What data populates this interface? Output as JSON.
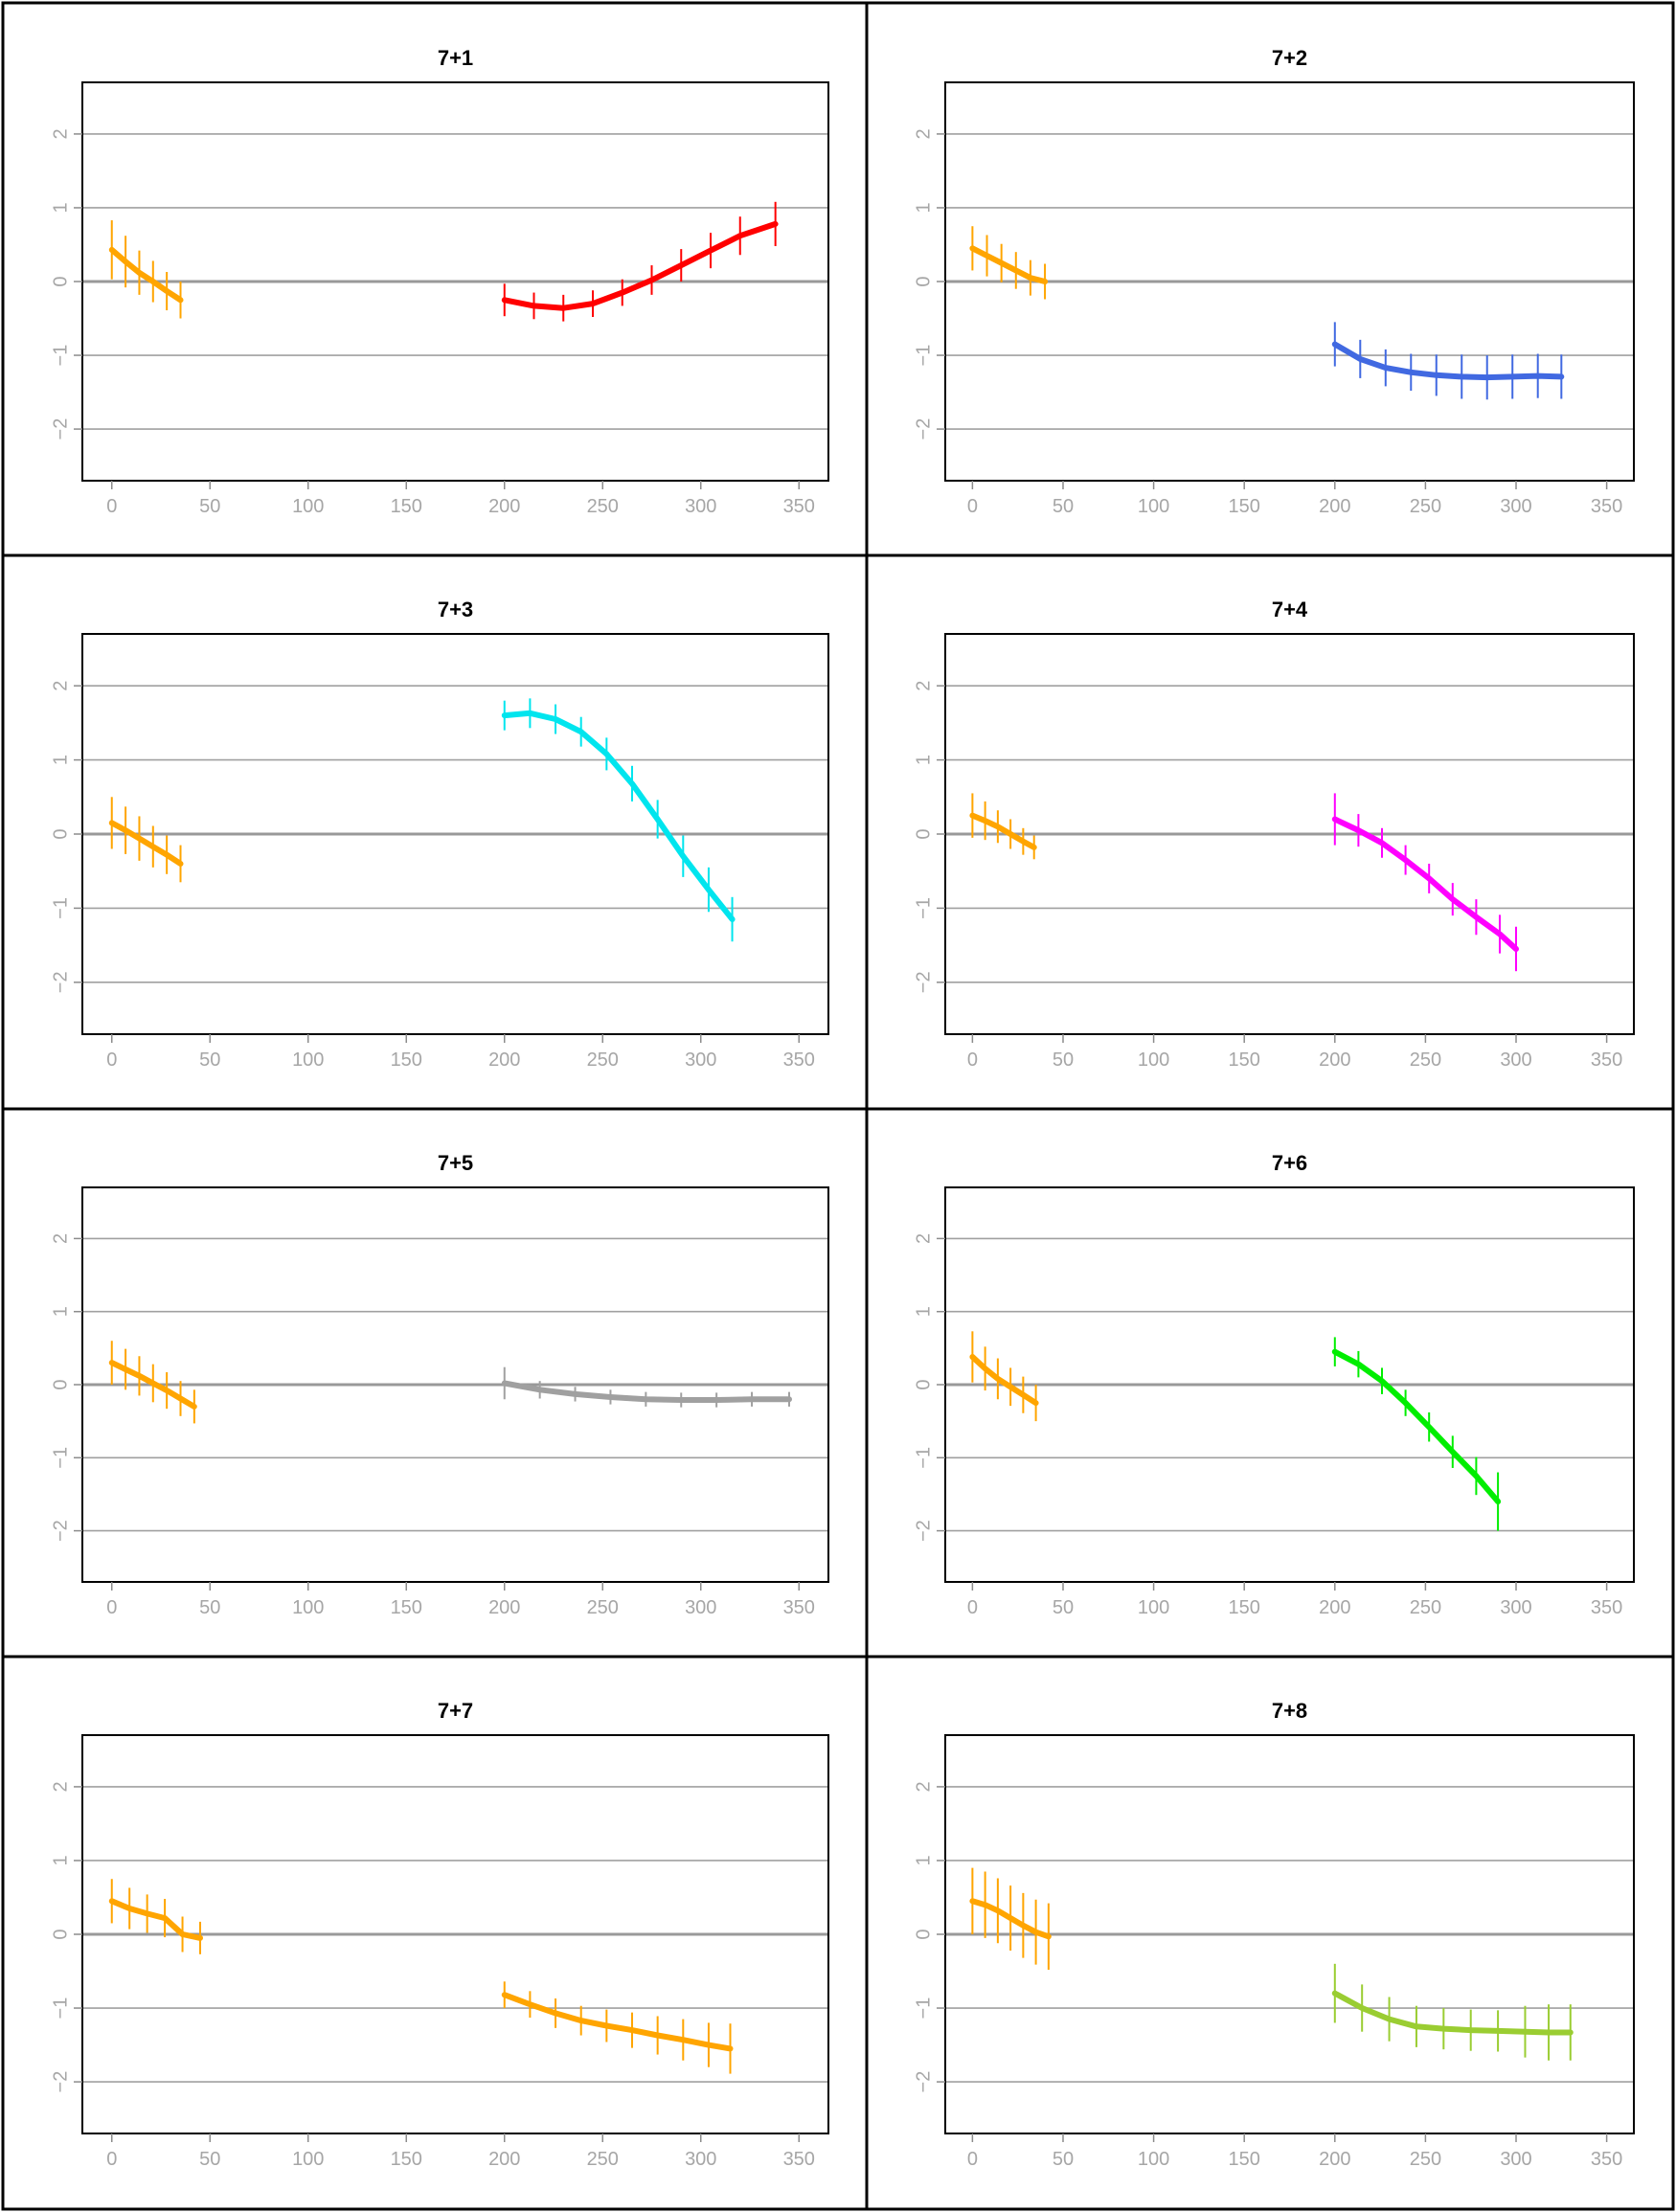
{
  "figure": {
    "colors": {
      "reference": "#ffa500",
      "gridline": "#a0a0a0",
      "zero_line": "#999999",
      "tick_text": "#a6a6a6",
      "frame": "#000000"
    }
  },
  "chart_data": [
    {
      "type": "line",
      "title": "7+1",
      "xlabel": "",
      "ylabel": "",
      "xlim": [
        -15,
        365
      ],
      "ylim": [
        -2.7,
        2.7
      ],
      "x_ticks": [
        0,
        50,
        100,
        150,
        200,
        250,
        300,
        350
      ],
      "x_tick_labels": [
        "0",
        "50",
        "100",
        "150",
        "200",
        "250",
        "300",
        "350"
      ],
      "y_ticks": [
        -2,
        -1,
        0,
        1,
        2
      ],
      "y_tick_labels": [
        "−2",
        "−1",
        "0",
        "1",
        "2"
      ],
      "grid": "horizontal",
      "series": [
        {
          "color": "#ffa500",
          "x": [
            0,
            7,
            14,
            21,
            28,
            35
          ],
          "y": [
            0.43,
            0.27,
            0.12,
            0.0,
            -0.13,
            -0.25
          ],
          "err": [
            0.4,
            0.35,
            0.3,
            0.28,
            0.26,
            0.25
          ]
        },
        {
          "color": "#ff0000",
          "x": [
            200,
            215,
            230,
            245,
            260,
            275,
            290,
            305,
            320,
            338
          ],
          "y": [
            -0.25,
            -0.33,
            -0.36,
            -0.3,
            -0.15,
            0.02,
            0.22,
            0.42,
            0.62,
            0.78
          ],
          "err": [
            0.22,
            0.18,
            0.18,
            0.18,
            0.18,
            0.2,
            0.22,
            0.24,
            0.26,
            0.3
          ]
        }
      ]
    },
    {
      "type": "line",
      "title": "7+2",
      "xlabel": "",
      "ylabel": "",
      "xlim": [
        -15,
        365
      ],
      "ylim": [
        -2.7,
        2.7
      ],
      "x_ticks": [
        0,
        50,
        100,
        150,
        200,
        250,
        300,
        350
      ],
      "x_tick_labels": [
        "0",
        "50",
        "100",
        "150",
        "200",
        "250",
        "300",
        "350"
      ],
      "y_ticks": [
        -2,
        -1,
        0,
        1,
        2
      ],
      "y_tick_labels": [
        "−2",
        "−1",
        "0",
        "1",
        "2"
      ],
      "grid": "horizontal",
      "series": [
        {
          "color": "#ffa500",
          "x": [
            0,
            8,
            16,
            24,
            32,
            40
          ],
          "y": [
            0.45,
            0.35,
            0.25,
            0.15,
            0.05,
            0.0
          ],
          "err": [
            0.3,
            0.28,
            0.26,
            0.25,
            0.24,
            0.24
          ]
        },
        {
          "color": "#4169e1",
          "x": [
            200,
            214,
            228,
            242,
            256,
            270,
            284,
            298,
            312,
            325
          ],
          "y": [
            -0.85,
            -1.05,
            -1.17,
            -1.23,
            -1.27,
            -1.29,
            -1.3,
            -1.29,
            -1.28,
            -1.29
          ],
          "err": [
            0.3,
            0.26,
            0.25,
            0.25,
            0.28,
            0.3,
            0.3,
            0.3,
            0.3,
            0.3
          ]
        }
      ]
    },
    {
      "type": "line",
      "title": "7+3",
      "xlabel": "",
      "ylabel": "",
      "xlim": [
        -15,
        365
      ],
      "ylim": [
        -2.7,
        2.7
      ],
      "x_ticks": [
        0,
        50,
        100,
        150,
        200,
        250,
        300,
        350
      ],
      "x_tick_labels": [
        "0",
        "50",
        "100",
        "150",
        "200",
        "250",
        "300",
        "350"
      ],
      "y_ticks": [
        -2,
        -1,
        0,
        1,
        2
      ],
      "y_tick_labels": [
        "−2",
        "−1",
        "0",
        "1",
        "2"
      ],
      "grid": "horizontal",
      "series": [
        {
          "color": "#ffa500",
          "x": [
            0,
            7,
            14,
            21,
            28,
            35
          ],
          "y": [
            0.15,
            0.05,
            -0.06,
            -0.17,
            -0.28,
            -0.4
          ],
          "err": [
            0.35,
            0.32,
            0.3,
            0.28,
            0.26,
            0.25
          ]
        },
        {
          "color": "#00e5ee",
          "x": [
            200,
            213,
            226,
            239,
            252,
            265,
            278,
            291,
            304,
            316
          ],
          "y": [
            1.6,
            1.63,
            1.55,
            1.38,
            1.08,
            0.68,
            0.2,
            -0.3,
            -0.75,
            -1.15
          ],
          "err": [
            0.2,
            0.2,
            0.2,
            0.2,
            0.22,
            0.24,
            0.26,
            0.28,
            0.3,
            0.3
          ]
        }
      ]
    },
    {
      "type": "line",
      "title": "7+4",
      "xlabel": "",
      "ylabel": "",
      "xlim": [
        -15,
        365
      ],
      "ylim": [
        -2.7,
        2.7
      ],
      "x_ticks": [
        0,
        50,
        100,
        150,
        200,
        250,
        300,
        350
      ],
      "x_tick_labels": [
        "0",
        "50",
        "100",
        "150",
        "200",
        "250",
        "300",
        "350"
      ],
      "y_ticks": [
        -2,
        -1,
        0,
        1,
        2
      ],
      "y_tick_labels": [
        "−2",
        "−1",
        "0",
        "1",
        "2"
      ],
      "grid": "horizontal",
      "series": [
        {
          "color": "#ffa500",
          "x": [
            0,
            7,
            14,
            21,
            28,
            34
          ],
          "y": [
            0.25,
            0.18,
            0.1,
            0.0,
            -0.1,
            -0.18
          ],
          "err": [
            0.3,
            0.26,
            0.22,
            0.2,
            0.18,
            0.16
          ]
        },
        {
          "color": "#ff00ff",
          "x": [
            200,
            213,
            226,
            239,
            252,
            265,
            278,
            291,
            300
          ],
          "y": [
            0.2,
            0.05,
            -0.12,
            -0.35,
            -0.6,
            -0.88,
            -1.12,
            -1.35,
            -1.55
          ],
          "err": [
            0.35,
            0.22,
            0.2,
            0.2,
            0.2,
            0.22,
            0.24,
            0.26,
            0.3
          ]
        }
      ]
    },
    {
      "type": "line",
      "title": "7+5",
      "xlabel": "",
      "ylabel": "",
      "xlim": [
        -15,
        365
      ],
      "ylim": [
        -2.7,
        2.7
      ],
      "x_ticks": [
        0,
        50,
        100,
        150,
        200,
        250,
        300,
        350
      ],
      "x_tick_labels": [
        "0",
        "50",
        "100",
        "150",
        "200",
        "250",
        "300",
        "350"
      ],
      "y_ticks": [
        -2,
        -1,
        0,
        1,
        2
      ],
      "y_tick_labels": [
        "−2",
        "−1",
        "0",
        "1",
        "2"
      ],
      "grid": "horizontal",
      "series": [
        {
          "color": "#ffa500",
          "x": [
            0,
            7,
            14,
            21,
            28,
            35,
            42
          ],
          "y": [
            0.3,
            0.21,
            0.12,
            0.02,
            -0.08,
            -0.19,
            -0.3
          ],
          "err": [
            0.3,
            0.28,
            0.27,
            0.26,
            0.25,
            0.24,
            0.23
          ]
        },
        {
          "color": "#a0a0a0",
          "x": [
            200,
            218,
            236,
            254,
            272,
            290,
            308,
            326,
            345
          ],
          "y": [
            0.02,
            -0.07,
            -0.13,
            -0.17,
            -0.2,
            -0.21,
            -0.21,
            -0.2,
            -0.2
          ],
          "err": [
            0.22,
            0.12,
            0.1,
            0.1,
            0.1,
            0.1,
            0.1,
            0.1,
            0.1
          ]
        }
      ]
    },
    {
      "type": "line",
      "title": "7+6",
      "xlabel": "",
      "ylabel": "",
      "xlim": [
        -15,
        365
      ],
      "ylim": [
        -2.7,
        2.7
      ],
      "x_ticks": [
        0,
        50,
        100,
        150,
        200,
        250,
        300,
        350
      ],
      "x_tick_labels": [
        "0",
        "50",
        "100",
        "150",
        "200",
        "250",
        "300",
        "350"
      ],
      "y_ticks": [
        -2,
        -1,
        0,
        1,
        2
      ],
      "y_tick_labels": [
        "−2",
        "−1",
        "0",
        "1",
        "2"
      ],
      "grid": "horizontal",
      "series": [
        {
          "color": "#ffa500",
          "x": [
            0,
            7,
            14,
            21,
            28,
            35
          ],
          "y": [
            0.38,
            0.22,
            0.08,
            -0.03,
            -0.14,
            -0.25
          ],
          "err": [
            0.35,
            0.3,
            0.28,
            0.26,
            0.25,
            0.25
          ]
        },
        {
          "color": "#00ee00",
          "x": [
            200,
            213,
            226,
            239,
            252,
            265,
            278,
            290
          ],
          "y": [
            0.45,
            0.28,
            0.05,
            -0.25,
            -0.58,
            -0.92,
            -1.25,
            -1.6
          ],
          "err": [
            0.2,
            0.18,
            0.18,
            0.18,
            0.2,
            0.22,
            0.26,
            0.4
          ]
        }
      ]
    },
    {
      "type": "line",
      "title": "7+7",
      "xlabel": "",
      "ylabel": "",
      "xlim": [
        -15,
        365
      ],
      "ylim": [
        -2.7,
        2.7
      ],
      "x_ticks": [
        0,
        50,
        100,
        150,
        200,
        250,
        300,
        350
      ],
      "x_tick_labels": [
        "0",
        "50",
        "100",
        "150",
        "200",
        "250",
        "300",
        "350"
      ],
      "y_ticks": [
        -2,
        -1,
        0,
        1,
        2
      ],
      "y_tick_labels": [
        "−2",
        "−1",
        "0",
        "1",
        "2"
      ],
      "grid": "horizontal",
      "series": [
        {
          "color": "#ffa500",
          "x": [
            0,
            9,
            18,
            27,
            36,
            45
          ],
          "y": [
            0.45,
            0.35,
            0.28,
            0.22,
            0.0,
            -0.05
          ],
          "err": [
            0.3,
            0.28,
            0.26,
            0.26,
            0.24,
            0.22
          ]
        },
        {
          "color": "#ffa500",
          "x": [
            200,
            213,
            226,
            239,
            252,
            265,
            278,
            291,
            304,
            315
          ],
          "y": [
            -0.82,
            -0.95,
            -1.07,
            -1.17,
            -1.24,
            -1.3,
            -1.37,
            -1.43,
            -1.5,
            -1.55
          ],
          "err": [
            0.18,
            0.18,
            0.2,
            0.2,
            0.22,
            0.24,
            0.26,
            0.28,
            0.3,
            0.34
          ]
        }
      ]
    },
    {
      "type": "line",
      "title": "7+8",
      "xlabel": "",
      "ylabel": "",
      "xlim": [
        -15,
        365
      ],
      "ylim": [
        -2.7,
        2.7
      ],
      "x_ticks": [
        0,
        50,
        100,
        150,
        200,
        250,
        300,
        350
      ],
      "x_tick_labels": [
        "0",
        "50",
        "100",
        "150",
        "200",
        "250",
        "300",
        "350"
      ],
      "y_ticks": [
        -2,
        -1,
        0,
        1,
        2
      ],
      "y_tick_labels": [
        "−2",
        "−1",
        "0",
        "1",
        "2"
      ],
      "grid": "horizontal",
      "series": [
        {
          "color": "#ffa500",
          "x": [
            0,
            7,
            14,
            21,
            28,
            35,
            42
          ],
          "y": [
            0.45,
            0.4,
            0.32,
            0.22,
            0.12,
            0.03,
            -0.03
          ],
          "err": [
            0.45,
            0.45,
            0.44,
            0.44,
            0.44,
            0.44,
            0.45
          ]
        },
        {
          "color": "#9acd32",
          "x": [
            200,
            215,
            230,
            245,
            260,
            275,
            290,
            305,
            318,
            330
          ],
          "y": [
            -0.8,
            -1.0,
            -1.15,
            -1.25,
            -1.28,
            -1.3,
            -1.31,
            -1.32,
            -1.33,
            -1.33
          ],
          "err": [
            0.4,
            0.32,
            0.3,
            0.28,
            0.28,
            0.28,
            0.28,
            0.35,
            0.38,
            0.38
          ]
        }
      ]
    }
  ]
}
